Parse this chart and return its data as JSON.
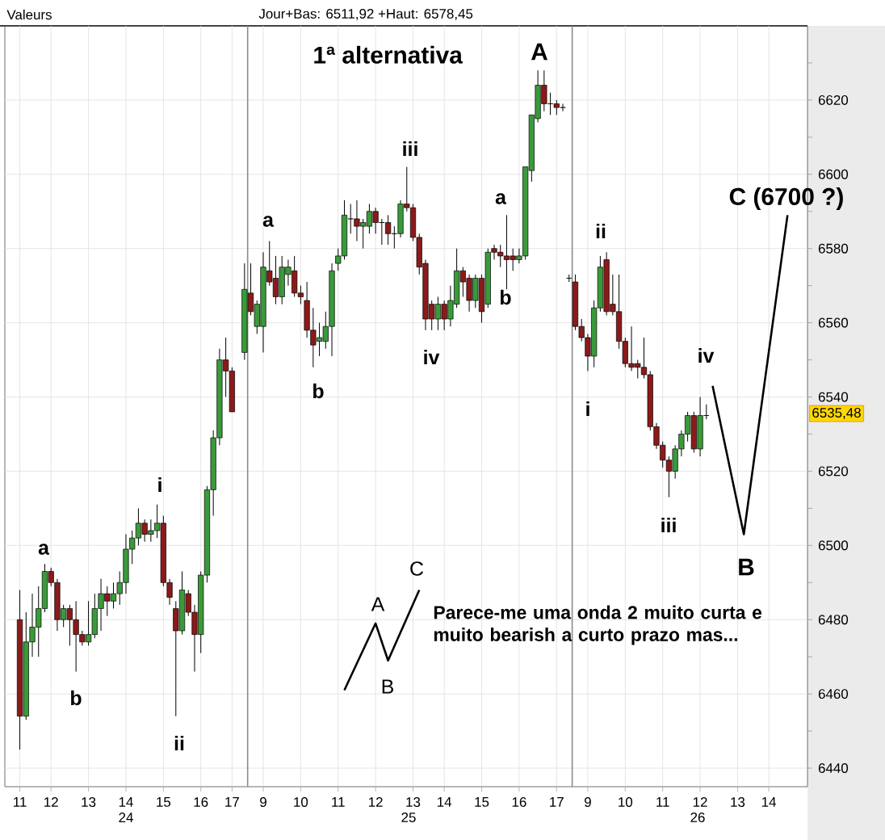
{
  "chart_data": {
    "type": "candlestick",
    "title": "1ª alternativa",
    "annotations": [
      "Valeurs",
      "Jour+Bas: 6511,92 +Haut: 6578,45",
      "Parece-me uma onda 2 muito curta e muito bearish a curto prazo mas...",
      "24",
      "25",
      "26",
      "a",
      "b",
      "i",
      "ii",
      "a",
      "b",
      "iii",
      "iv",
      "a",
      "b",
      "A",
      "ii",
      "i",
      "iii",
      "iv",
      "B",
      "C (6700 ?)",
      "A",
      "B",
      "C",
      "6535,48"
    ],
    "categories": [
      "11",
      null,
      null,
      null,
      null,
      "12",
      null,
      null,
      null,
      null,
      null,
      "13",
      null,
      null,
      null,
      null,
      null,
      "14",
      null,
      null,
      null,
      null,
      null,
      "15",
      null,
      null,
      null,
      null,
      null,
      "16",
      null,
      null,
      null,
      null,
      "17",
      null,
      null,
      null,
      null,
      "9",
      null,
      null,
      null,
      null,
      null,
      "10",
      null,
      null,
      null,
      null,
      null,
      "11",
      null,
      null,
      null,
      null,
      null,
      "12",
      null,
      null,
      null,
      null,
      null,
      "13",
      null,
      null,
      null,
      null,
      "14",
      null,
      null,
      null,
      null,
      null,
      "15",
      null,
      null,
      null,
      null,
      null,
      "16",
      null,
      null,
      null,
      null,
      null,
      "17",
      null,
      null,
      null,
      null,
      "9",
      null,
      null,
      null,
      null,
      null,
      "10",
      null,
      null,
      null,
      null,
      null,
      "11",
      null,
      null,
      null,
      null,
      null,
      "12",
      null,
      null,
      null,
      null,
      null,
      "13",
      null,
      null,
      null,
      null,
      "14",
      null,
      null,
      null,
      null,
      null,
      null
    ],
    "ylim": [
      6435,
      6640
    ],
    "yticks": [
      6440,
      {
        "value": 6450,
        "label": null
      },
      6460,
      {
        "value": 6470,
        "label": null
      },
      6480,
      {
        "value": 6490,
        "label": null
      },
      6500,
      {
        "value": 6510,
        "label": null
      },
      6520,
      {
        "value": 6530,
        "label": null
      },
      6540,
      {
        "value": 6550,
        "label": null
      },
      6560,
      {
        "value": 6570,
        "label": null
      },
      6580,
      {
        "value": 6590,
        "label": null
      },
      6600,
      {
        "value": 6610,
        "label": null
      },
      6620,
      {
        "value": 6630,
        "label": null
      }
    ],
    "grid": true,
    "series": [
      {
        "ohlc": [
          [
            6480,
            6488,
            6445,
            6454
          ],
          [
            6454,
            6482,
            6453,
            6474
          ],
          [
            6474,
            6487,
            6470,
            6478
          ],
          [
            6478,
            6489,
            6470,
            6483
          ],
          [
            6483,
            6495,
            6482,
            6493
          ],
          [
            6493,
            6494,
            6489,
            6490
          ],
          [
            6490,
            6491,
            6477,
            6480
          ],
          [
            6480,
            6484,
            6478,
            6483
          ],
          [
            6483,
            6484,
            6473,
            6480
          ],
          [
            6480,
            6485,
            6466,
            6476
          ],
          [
            6476,
            6477,
            6473,
            6474
          ],
          [
            6474,
            6485,
            6473,
            6476
          ],
          [
            6476,
            6487,
            6475,
            6483
          ],
          [
            6483,
            6491,
            6477,
            6487
          ],
          [
            6487,
            6489,
            6481,
            6485
          ],
          [
            6485,
            6490,
            6483,
            6487
          ],
          [
            6487,
            6493,
            6484,
            6490
          ],
          [
            6490,
            6503,
            6487,
            6499
          ],
          [
            6499,
            6504,
            6495,
            6502
          ],
          [
            6502,
            6510,
            6500,
            6506
          ],
          [
            6506,
            6507,
            6501,
            6503
          ],
          [
            6503,
            6507,
            6501,
            6504
          ],
          [
            6504,
            6511,
            6502,
            6506
          ],
          [
            6506,
            6508,
            6489,
            6490
          ],
          [
            6490,
            6491,
            6484,
            6486
          ],
          [
            6483,
            6485,
            6454,
            6477
          ],
          [
            6477,
            6493,
            6476,
            6488
          ],
          [
            6487,
            6488,
            6481,
            6482
          ],
          [
            6482,
            6484,
            6466,
            6476
          ],
          [
            6476,
            6493,
            6471,
            6492
          ],
          [
            6492,
            6516,
            6490,
            6515
          ],
          [
            6515,
            6531,
            6508,
            6529
          ],
          [
            6529,
            6553,
            6527,
            6550
          ],
          [
            6550,
            6556,
            6540,
            6547
          ],
          [
            6547,
            6548,
            6536,
            6536
          ],
          null,
          [
            6552,
            6576,
            6550,
            6569
          ],
          [
            6568,
            6576,
            6562,
            6563
          ],
          [
            6559,
            6566,
            6557,
            6565
          ],
          [
            6559,
            6579,
            6552,
            6575
          ],
          [
            6574,
            6582,
            6570,
            6571
          ],
          [
            6572,
            6578,
            6565,
            6567
          ],
          [
            6567,
            6578,
            6565,
            6575
          ],
          [
            6573,
            6577,
            6570,
            6575
          ],
          [
            6574,
            6578,
            6567,
            6568
          ],
          [
            6568,
            6570,
            6565,
            6567
          ],
          [
            6566,
            6571,
            6556,
            6558
          ],
          [
            6558,
            6564,
            6548,
            6554
          ],
          [
            6555,
            6560,
            6551,
            6556
          ],
          [
            6555,
            6563,
            6553,
            6559
          ],
          [
            6559,
            6576,
            6551,
            6574
          ],
          [
            6576,
            6580,
            6574,
            6578
          ],
          [
            6578,
            6593,
            6577,
            6589
          ],
          [
            6588,
            6592,
            6584,
            6588
          ],
          [
            6588,
            6593,
            6582,
            6586
          ],
          [
            6586,
            6588,
            6580,
            6587
          ],
          [
            6586,
            6592,
            6584,
            6590
          ],
          [
            6590,
            6591,
            6584,
            6587
          ],
          [
            6587,
            6588,
            6581,
            6587
          ],
          [
            6587,
            6589,
            6581,
            6584
          ],
          [
            6584,
            6586,
            6580,
            6584
          ],
          [
            6584,
            6593,
            6583,
            6592
          ],
          [
            6592,
            6602,
            6590,
            6591
          ],
          [
            6591,
            6592,
            6582,
            6583
          ],
          [
            6583,
            6584,
            6573,
            6575
          ],
          [
            6576,
            6577,
            6558,
            6561
          ],
          [
            6565,
            6566,
            6558,
            6561
          ],
          [
            6561,
            6567,
            6558,
            6565
          ],
          [
            6565,
            6566,
            6558,
            6561
          ],
          [
            6561,
            6570,
            6559,
            6566
          ],
          [
            6565,
            6580,
            6564,
            6574
          ],
          [
            6574,
            6575,
            6567,
            6571
          ],
          [
            6572,
            6573,
            6563,
            6566
          ],
          [
            6566,
            6573,
            6564,
            6572
          ],
          [
            6572,
            6573,
            6560,
            6563
          ],
          [
            6565,
            6580,
            6564,
            6579
          ],
          [
            6580,
            6581,
            6577,
            6579
          ],
          [
            6579,
            6581,
            6575,
            6578
          ],
          [
            6578,
            6589,
            6569,
            6577
          ],
          [
            6578,
            6580,
            6574,
            6577
          ],
          [
            6577,
            6580,
            6576,
            6578
          ],
          [
            6578,
            6602,
            6577,
            6602
          ],
          [
            6601,
            6616,
            6598,
            6616
          ],
          [
            6615,
            6628,
            6614,
            6624
          ],
          [
            6624,
            6628,
            6617,
            6619
          ],
          [
            6619,
            6622,
            6616,
            6619
          ],
          [
            6619,
            6620,
            6616,
            6618
          ],
          [
            6618,
            6619,
            6617,
            6618
          ],
          [
            6572,
            6573,
            6571,
            6572
          ],
          [
            6571,
            6573,
            6558,
            6559
          ],
          [
            6559,
            6561,
            6555,
            6556
          ],
          [
            6556,
            6557,
            6547,
            6551
          ],
          [
            6551,
            6566,
            6548,
            6564
          ],
          [
            6564,
            6578,
            6563,
            6575
          ],
          [
            6577,
            6579,
            6562,
            6563
          ],
          [
            6565,
            6573,
            6562,
            6563
          ],
          [
            6563,
            6573,
            6553,
            6555
          ],
          [
            6555,
            6556,
            6548,
            6549
          ],
          [
            6549,
            6559,
            6547,
            6548
          ],
          [
            6549,
            6550,
            6545,
            6548
          ],
          [
            6548,
            6556,
            6545,
            6546
          ],
          [
            6546,
            6547,
            6531,
            6532
          ],
          [
            6532,
            6533,
            6526,
            6527
          ],
          [
            6527,
            6528,
            6521,
            6523
          ],
          [
            6523,
            6524,
            6513,
            6520
          ],
          [
            6520,
            6527,
            6518,
            6526
          ],
          [
            6526,
            6531,
            6524,
            6530
          ],
          [
            6530,
            6536,
            6528,
            6535
          ],
          [
            6535,
            6536,
            6525,
            6526
          ],
          [
            6526,
            6540,
            6524,
            6535
          ],
          [
            6535,
            6538,
            6534,
            6535
          ],
          null,
          null,
          null,
          null,
          null,
          null,
          null,
          null,
          null,
          null,
          null,
          null,
          null,
          null,
          null,
          null
        ]
      },
      {
        "type": "line",
        "color": "#000000",
        "values": [
          null,
          null,
          null,
          null,
          null,
          null,
          null,
          null,
          null,
          null,
          null,
          null,
          null,
          null,
          null,
          null,
          null,
          null,
          null,
          null,
          null,
          null,
          null,
          null,
          null,
          null,
          null,
          null,
          null,
          null,
          null,
          null,
          null,
          null,
          null,
          null,
          null,
          null,
          null,
          null,
          null,
          null,
          null,
          null,
          null,
          null,
          null,
          null,
          null,
          null,
          null,
          null,
          null,
          null,
          null,
          null,
          null,
          null,
          null,
          null,
          null,
          null,
          null,
          null,
          null,
          null,
          null,
          null,
          null,
          null,
          null,
          null,
          null,
          null,
          null,
          null,
          null,
          null,
          null,
          null,
          null,
          null,
          null,
          null,
          null,
          null,
          null,
          null,
          null,
          null,
          null,
          null,
          null,
          null,
          null,
          null,
          null,
          null,
          null,
          null,
          null,
          null,
          null,
          null,
          null,
          null,
          null,
          null,
          null,
          null,
          null,
          6543,
          null,
          null,
          null,
          null,
          6503,
          null,
          null,
          null,
          null,
          null,
          null,
          6589,
          null,
          null,
          null
        ]
      },
      {
        "type": "line",
        "color": "#000000",
        "values": [
          null,
          null,
          null,
          null,
          null,
          null,
          null,
          null,
          null,
          null,
          null,
          null,
          null,
          null,
          null,
          null,
          null,
          null,
          null,
          null,
          null,
          null,
          null,
          null,
          null,
          null,
          null,
          null,
          null,
          null,
          null,
          null,
          null,
          null,
          null,
          null,
          null,
          null,
          null,
          null,
          null,
          null,
          null,
          null,
          null,
          null,
          null,
          null,
          null,
          null,
          null,
          null,
          6461,
          null,
          null,
          null,
          null,
          6479,
          null,
          6469,
          null,
          null,
          null,
          null,
          6488,
          null,
          null,
          null,
          null,
          null,
          null,
          null,
          null,
          null,
          null,
          null,
          null,
          null,
          null,
          null,
          null,
          null,
          null,
          null,
          null,
          null,
          null,
          null,
          null,
          null,
          null,
          null,
          null,
          null,
          null,
          null,
          null,
          null,
          null,
          null,
          null,
          null,
          null,
          null,
          null,
          null,
          null,
          null,
          null,
          null,
          null,
          null,
          null,
          null,
          null,
          null,
          null,
          null,
          null,
          null,
          null,
          null,
          null,
          null,
          null,
          null,
          null
        ]
      }
    ]
  }
}
